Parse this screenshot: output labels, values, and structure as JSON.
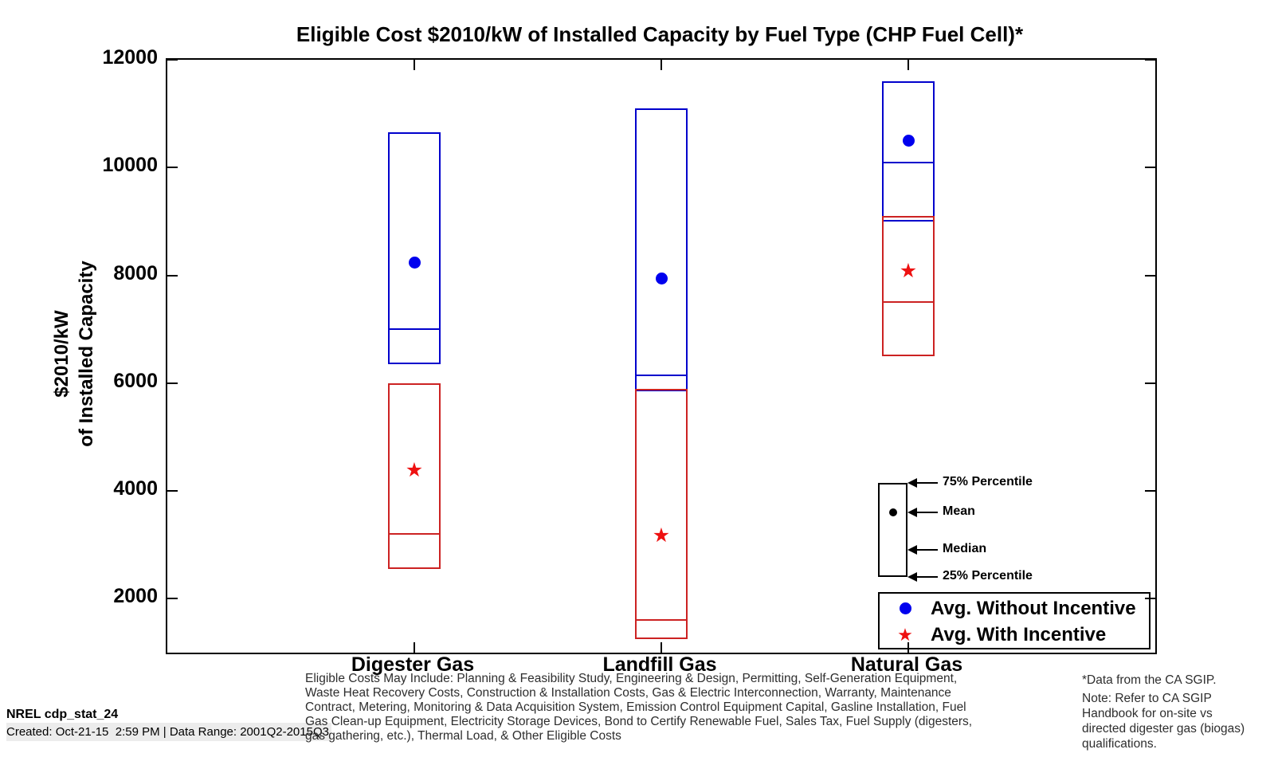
{
  "title": "Eligible Cost $2010/kW of Installed Capacity by Fuel Type (CHP Fuel Cell)*",
  "y_axis": {
    "label_line1": "$2010/kW",
    "label_line2": "of Installed Capacity"
  },
  "chart_data": {
    "type": "boxplot",
    "title": "Eligible Cost $2010/kW of Installed Capacity by Fuel Type (CHP Fuel Cell)*",
    "ylabel": "$2010/kW of Installed Capacity",
    "ylim": [
      1000,
      12000
    ],
    "yticks": [
      2000,
      4000,
      6000,
      8000,
      10000,
      12000
    ],
    "categories": [
      "Digester Gas",
      "Landfill Gas",
      "Natural Gas"
    ],
    "series": [
      {
        "name": "Avg. Without Incentive",
        "line_color": "#0000cc",
        "marker": "circle",
        "marker_color": "#0000ee",
        "boxes": [
          {
            "p25": 6350,
            "median": 7000,
            "p75": 10650,
            "mean": 8250
          },
          {
            "p25": 5850,
            "median": 6150,
            "p75": 11100,
            "mean": 7950
          },
          {
            "p25": 9000,
            "median": 10100,
            "p75": 11600,
            "mean": 10500
          }
        ]
      },
      {
        "name": "Avg. With Incentive",
        "line_color": "#cc2222",
        "marker": "star",
        "marker_color": "#ee1111",
        "boxes": [
          {
            "p25": 2550,
            "median": 3200,
            "p75": 6000,
            "mean": 4350
          },
          {
            "p25": 1250,
            "median": 1600,
            "p75": 5900,
            "mean": 3150
          },
          {
            "p25": 6500,
            "median": 7500,
            "p75": 9100,
            "mean": 8050
          }
        ]
      }
    ],
    "legend_position": "bottom-right",
    "grid": false
  },
  "key": {
    "labels": [
      "75% Percentile",
      "Mean",
      "Median",
      "25% Percentile"
    ],
    "values": {
      "p75": 4150,
      "mean": 3600,
      "median": 2900,
      "p25": 2400
    }
  },
  "legend": {
    "items": [
      {
        "label": "Avg. Without Incentive",
        "marker": "circle",
        "color": "#0000ee"
      },
      {
        "label": "Avg. With Incentive",
        "marker": "star",
        "color": "#ee1111"
      }
    ]
  },
  "footer": {
    "left_line1": "NREL cdp_stat_24",
    "left_line2": "Created: Oct-21-15  2:59 PM | Data Range: 2001Q2-2015Q3",
    "center": "Eligible Costs May Include: Planning & Feasibility Study, Engineering & Design, Permitting, Self-Generation Equipment, Waste Heat Recovery Costs, Construction & Installation Costs, Gas & Electric Interconnection, Warranty, Maintenance Contract, Metering, Monitoring & Data Acquisition System, Emission Control Equipment Capital, Gasline Installation, Fuel Gas Clean-up Equipment, Electricity Storage Devices, Bond to Certify Renewable Fuel, Sales Tax, Fuel Supply (digesters, gas gathering, etc.), Thermal Load, & Other Eligible Costs",
    "right_line1": "*Data from the CA SGIP.",
    "right_line2": "Note: Refer to CA SGIP Handbook for on-site vs directed digester gas (biogas) qualifications."
  }
}
